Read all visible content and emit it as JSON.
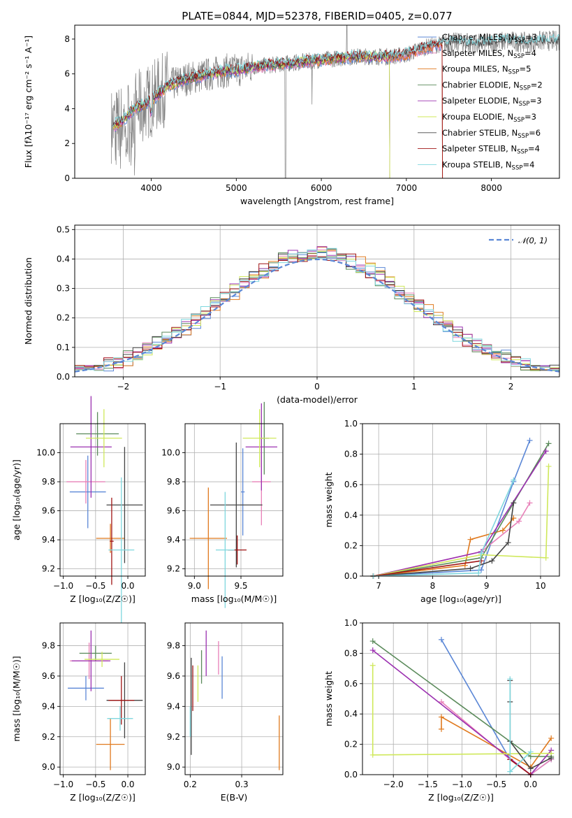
{
  "colors": {
    "chabrier_miles": "#5b87d6",
    "salpeter_miles": "#e880b8",
    "kroupa_miles": "#e07a1f",
    "chabrier_elodie": "#5a8a5a",
    "salpeter_elodie": "#9b30b0",
    "kroupa_elodie": "#cfe85a",
    "chabrier_stelib": "#444444",
    "salpeter_stelib": "#a01515",
    "kroupa_stelib": "#7fd7de",
    "data": "#808080",
    "normal": "#5b87d6"
  },
  "chart_data": [
    {
      "id": "spectrum",
      "type": "line",
      "title": "PLATE=0844, MJD=52378, FIBERID=0405, z=0.077",
      "xlabel": "wavelength [Angstrom, rest frame]",
      "ylabel": "Flux [fλ10⁻¹⁷ erg cm⁻² s⁻¹ A⁻¹]",
      "xlim": [
        3100,
        8800
      ],
      "ylim": [
        0,
        8.8
      ],
      "xticks": [
        4000,
        5000,
        6000,
        7000,
        8000
      ],
      "yticks": [
        0,
        2,
        4,
        6,
        8
      ],
      "grid": false,
      "legend_position": "right",
      "legend": [
        {
          "text": "Chabrier MILES, N",
          "sub": "SSP",
          "tail": "=3",
          "color": "chabrier_miles"
        },
        {
          "text": "Salpeter MILES, N",
          "sub": "SSP",
          "tail": "=4",
          "color": "salpeter_miles"
        },
        {
          "text": "Kroupa MILES, N",
          "sub": "SSP",
          "tail": "=5",
          "color": "kroupa_miles"
        },
        {
          "text": "Chabrier ELODIE, N",
          "sub": "SSP",
          "tail": "=2",
          "color": "chabrier_elodie"
        },
        {
          "text": "Salpeter ELODIE, N",
          "sub": "SSP",
          "tail": "=3",
          "color": "salpeter_elodie"
        },
        {
          "text": "Kroupa ELODIE, N",
          "sub": "SSP",
          "tail": "=3",
          "color": "kroupa_elodie"
        },
        {
          "text": "Chabrier STELIB, N",
          "sub": "SSP",
          "tail": "=6",
          "color": "chabrier_stelib"
        },
        {
          "text": "Salpeter STELIB, N",
          "sub": "SSP",
          "tail": "=4",
          "color": "salpeter_stelib"
        },
        {
          "text": "Kroupa STELIB, N",
          "sub": "SSP",
          "tail": "=4",
          "color": "kroupa_stelib"
        }
      ],
      "continuum": [
        [
          3500,
          3.0
        ],
        [
          3600,
          3.1
        ],
        [
          3700,
          3.5
        ],
        [
          3800,
          4.0
        ],
        [
          3900,
          4.2
        ],
        [
          4000,
          4.5
        ],
        [
          4100,
          4.9
        ],
        [
          4200,
          5.3
        ],
        [
          4300,
          5.5
        ],
        [
          4400,
          5.7
        ],
        [
          4500,
          5.8
        ],
        [
          4600,
          5.9
        ],
        [
          4700,
          6.0
        ],
        [
          4800,
          6.1
        ],
        [
          4900,
          6.2
        ],
        [
          5000,
          6.2
        ],
        [
          5200,
          6.4
        ],
        [
          5400,
          6.5
        ],
        [
          5600,
          6.6
        ],
        [
          5800,
          6.7
        ],
        [
          6000,
          6.8
        ],
        [
          6200,
          6.9
        ],
        [
          6400,
          7.0
        ],
        [
          6600,
          7.0
        ],
        [
          6800,
          7.0
        ],
        [
          7000,
          7.1
        ],
        [
          7200,
          7.5
        ],
        [
          7400,
          7.7
        ],
        [
          7600,
          7.8
        ],
        [
          7800,
          7.7
        ],
        [
          8000,
          7.8
        ],
        [
          8200,
          7.9
        ],
        [
          8400,
          7.8
        ],
        [
          8600,
          7.9
        ],
        [
          8800,
          7.9
        ]
      ]
    },
    {
      "id": "residuals",
      "type": "step",
      "xlabel": "(data-model)/error",
      "ylabel": "Normed distribution",
      "xlim": [
        -2.5,
        2.5
      ],
      "ylim": [
        0,
        0.515
      ],
      "xticks": [
        -2,
        -1,
        0,
        1,
        2
      ],
      "yticks": [
        0.0,
        0.1,
        0.2,
        0.3,
        0.4,
        0.5
      ],
      "grid": true,
      "legend_position": "top-right",
      "legend": [
        {
          "text": "𝒩(0, 1)",
          "color": "normal",
          "style": "dashed"
        }
      ],
      "bin_width": 0.1
    },
    {
      "id": "z_age",
      "type": "errorbar",
      "xlabel": "Z [log₁₀(Z/Z☉)]",
      "ylabel": "age  [log₁₀(age/yr)]",
      "xlim": [
        -1.05,
        0.27
      ],
      "ylim": [
        9.15,
        10.2
      ],
      "xticks": [
        -1.0,
        -0.5,
        0.0
      ],
      "yticks": [
        9.2,
        9.4,
        9.6,
        9.8,
        10.0
      ],
      "grid": true,
      "points": [
        {
          "series": "chabrier_miles",
          "x": -0.62,
          "xerr": 0.28,
          "y": 9.73,
          "yerr": 0.25
        },
        {
          "series": "salpeter_miles",
          "x": -0.65,
          "xerr": 0.3,
          "y": 9.8,
          "yerr": 0.15
        },
        {
          "series": "kroupa_miles",
          "x": -0.27,
          "xerr": 0.22,
          "y": 9.41,
          "yerr": 0.1
        },
        {
          "series": "chabrier_elodie",
          "x": -0.47,
          "xerr": 0.33,
          "y": 10.13,
          "yerr": 0.15
        },
        {
          "series": "salpeter_elodie",
          "x": -0.57,
          "xerr": 0.32,
          "y": 10.04,
          "yerr": 0.35
        },
        {
          "series": "kroupa_elodie",
          "x": -0.37,
          "xerr": 0.28,
          "y": 10.1,
          "yerr": 0.2
        },
        {
          "series": "chabrier_stelib",
          "x": -0.05,
          "xerr": 0.28,
          "y": 9.64,
          "yerr": 0.4
        },
        {
          "series": "salpeter_stelib",
          "x": -0.25,
          "xerr": 0.03,
          "y": 9.39,
          "yerr": 0.3
        },
        {
          "series": "kroupa_stelib",
          "x": -0.1,
          "xerr": 0.2,
          "y": 9.33,
          "yerr": 0.5
        }
      ]
    },
    {
      "id": "mass_age",
      "type": "errorbar",
      "xlabel": "mass [log₁₀(M/M☉)]",
      "ylabel": "",
      "xlim": [
        8.9,
        9.95
      ],
      "ylim": [
        9.15,
        10.2
      ],
      "xticks": [
        9.0,
        9.5
      ],
      "yticks": [
        9.2,
        9.4,
        9.6,
        9.8,
        10.0
      ],
      "grid": true,
      "points": [
        {
          "series": "chabrier_miles",
          "x": 9.52,
          "xerr": 0.02,
          "y": 9.73,
          "yerr": 0.3
        },
        {
          "series": "salpeter_miles",
          "x": 9.72,
          "xerr": 0.1,
          "y": 9.8,
          "yerr": 0.3
        },
        {
          "series": "kroupa_miles",
          "x": 9.15,
          "xerr": 0.2,
          "y": 9.41,
          "yerr": 0.35
        },
        {
          "series": "chabrier_elodie",
          "x": 9.75,
          "xerr": 0.05,
          "y": 10.1,
          "yerr": 0.25
        },
        {
          "series": "salpeter_elodie",
          "x": 9.72,
          "xerr": 0.17,
          "y": 10.04,
          "yerr": 0.3
        },
        {
          "series": "kroupa_elodie",
          "x": 9.7,
          "xerr": 0.18,
          "y": 10.1,
          "yerr": 0.2
        },
        {
          "series": "chabrier_stelib",
          "x": 9.45,
          "xerr": 0.28,
          "y": 9.64,
          "yerr": 0.43
        },
        {
          "series": "salpeter_stelib",
          "x": 9.46,
          "xerr": 0.1,
          "y": 9.33,
          "yerr": 0.1
        },
        {
          "series": "kroupa_stelib",
          "x": 9.33,
          "xerr": 0.1,
          "y": 9.33,
          "yerr": 0.4
        }
      ]
    },
    {
      "id": "age_weight",
      "type": "line",
      "xlabel": "age  [log₁₀(age/yr)]",
      "ylabel": "mass weight",
      "xlim": [
        6.7,
        10.35
      ],
      "ylim": [
        0,
        1.0
      ],
      "xticks": [
        7,
        8,
        9,
        10
      ],
      "yticks": [
        0.0,
        0.2,
        0.4,
        0.6,
        0.8,
        1.0
      ],
      "grid": true,
      "series": [
        {
          "name": "chabrier_miles",
          "points": [
            [
              6.9,
              0.0
            ],
            [
              8.9,
              0.04
            ],
            [
              9.5,
              0.62
            ],
            [
              9.8,
              0.89
            ]
          ]
        },
        {
          "name": "salpeter_miles",
          "points": [
            [
              6.9,
              0.0
            ],
            [
              8.9,
              0.16
            ],
            [
              9.6,
              0.36
            ],
            [
              9.8,
              0.48
            ]
          ]
        },
        {
          "name": "kroupa_miles",
          "points": [
            [
              6.9,
              0.0
            ],
            [
              8.6,
              0.07
            ],
            [
              8.7,
              0.24
            ],
            [
              9.3,
              0.3
            ],
            [
              9.5,
              0.38
            ]
          ]
        },
        {
          "name": "chabrier_elodie",
          "points": [
            [
              6.9,
              0.0
            ],
            [
              8.9,
              0.12
            ],
            [
              10.15,
              0.87
            ]
          ]
        },
        {
          "name": "salpeter_elodie",
          "points": [
            [
              6.9,
              0.0
            ],
            [
              8.9,
              0.16
            ],
            [
              10.1,
              0.82
            ]
          ]
        },
        {
          "name": "kroupa_elodie",
          "points": [
            [
              6.9,
              0.0
            ],
            [
              8.9,
              0.14
            ],
            [
              10.1,
              0.12
            ],
            [
              10.15,
              0.72
            ]
          ]
        },
        {
          "name": "chabrier_stelib",
          "points": [
            [
              6.9,
              0.0
            ],
            [
              8.7,
              0.05
            ],
            [
              9.1,
              0.1
            ],
            [
              9.4,
              0.22
            ],
            [
              9.5,
              0.48
            ]
          ]
        },
        {
          "name": "salpeter_stelib",
          "points": [
            [
              6.9,
              0.0
            ],
            [
              8.9,
              0.1
            ]
          ]
        },
        {
          "name": "kroupa_stelib",
          "points": [
            [
              6.9,
              0.0
            ],
            [
              8.85,
              0.02
            ],
            [
              8.9,
              0.15
            ],
            [
              9.5,
              0.63
            ]
          ]
        }
      ]
    },
    {
      "id": "z_mass",
      "type": "errorbar",
      "xlabel": "Z [log₁₀(Z/Z☉)]",
      "ylabel": "mass [log₁₀(M/M☉)]",
      "xlim": [
        -1.05,
        0.27
      ],
      "ylim": [
        8.95,
        9.95
      ],
      "xticks": [
        -1.0,
        -0.5,
        0.0
      ],
      "yticks": [
        9.0,
        9.2,
        9.4,
        9.6,
        9.8
      ],
      "grid": true,
      "points": [
        {
          "series": "chabrier_miles",
          "x": -0.65,
          "xerr": 0.28,
          "y": 9.52,
          "yerr": 0.08
        },
        {
          "series": "salpeter_miles",
          "x": -0.6,
          "xerr": 0.3,
          "y": 9.7,
          "yerr": 0.12
        },
        {
          "series": "kroupa_miles",
          "x": -0.27,
          "xerr": 0.22,
          "y": 9.15,
          "yerr": 0.17
        },
        {
          "series": "chabrier_elodie",
          "x": -0.5,
          "xerr": 0.25,
          "y": 9.75,
          "yerr": 0.05
        },
        {
          "series": "salpeter_elodie",
          "x": -0.57,
          "xerr": 0.3,
          "y": 9.7,
          "yerr": 0.2
        },
        {
          "series": "kroupa_elodie",
          "x": -0.4,
          "xerr": 0.27,
          "y": 9.71,
          "yerr": 0.05
        },
        {
          "series": "chabrier_stelib",
          "x": -0.05,
          "xerr": 0.28,
          "y": 9.44,
          "yerr": 0.25
        },
        {
          "series": "salpeter_stelib",
          "x": -0.1,
          "xerr": 0.2,
          "y": 9.44,
          "yerr": 0.16
        },
        {
          "series": "kroupa_stelib",
          "x": -0.12,
          "xerr": 0.2,
          "y": 9.32,
          "yerr": 0.08
        }
      ]
    },
    {
      "id": "ebv_mass",
      "type": "errorbar",
      "xlabel": "E(B-V)",
      "ylabel": "",
      "xlim": [
        0.19,
        0.38
      ],
      "ylim": [
        8.95,
        9.95
      ],
      "xticks": [
        0.2,
        0.3
      ],
      "yticks": [
        9.0,
        9.2,
        9.4,
        9.6,
        9.8
      ],
      "grid": true,
      "points": [
        {
          "series": "chabrier_miles",
          "x": 0.262,
          "xerr": 0,
          "y": 9.59,
          "yerr": 0.14
        },
        {
          "series": "salpeter_miles",
          "x": 0.255,
          "xerr": 0,
          "y": 9.72,
          "yerr": 0.11
        },
        {
          "series": "kroupa_miles",
          "x": 0.373,
          "xerr": 0,
          "y": 9.16,
          "yerr": 0.18
        },
        {
          "series": "chabrier_elodie",
          "x": 0.222,
          "xerr": 0,
          "y": 9.66,
          "yerr": 0.11
        },
        {
          "series": "salpeter_elodie",
          "x": 0.231,
          "xerr": 0,
          "y": 9.75,
          "yerr": 0.15
        },
        {
          "series": "kroupa_elodie",
          "x": 0.215,
          "xerr": 0,
          "y": 9.55,
          "yerr": 0.12
        },
        {
          "series": "chabrier_stelib",
          "x": 0.202,
          "xerr": 0,
          "y": 9.4,
          "yerr": 0.32
        },
        {
          "series": "salpeter_stelib",
          "x": 0.205,
          "xerr": 0,
          "y": 9.52,
          "yerr": 0.15
        },
        {
          "series": "kroupa_stelib",
          "x": 0.2,
          "xerr": 0,
          "y": 9.3,
          "yerr": 0.1
        }
      ]
    },
    {
      "id": "z_weight",
      "type": "line",
      "xlabel": "Z [log₁₀(Z/Z☉)]",
      "ylabel": "mass weight",
      "xlim": [
        -2.45,
        0.42
      ],
      "ylim": [
        0,
        1.0
      ],
      "xticks": [
        -2.0,
        -1.5,
        -1.0,
        -0.5,
        0.0
      ],
      "yticks": [
        0.0,
        0.2,
        0.4,
        0.6,
        0.8,
        1.0
      ],
      "grid": true,
      "series": [
        {
          "name": "chabrier_miles",
          "points": [
            [
              -1.3,
              0.89
            ],
            [
              -0.3,
              0.1
            ],
            [
              0.0,
              0.0
            ],
            [
              0.3,
              0.1
            ]
          ]
        },
        {
          "name": "salpeter_miles",
          "points": [
            [
              -1.3,
              0.48
            ],
            [
              -0.3,
              0.1
            ],
            [
              0.0,
              0.0
            ],
            [
              0.3,
              0.1
            ]
          ]
        },
        {
          "name": "kroupa_miles",
          "points": [
            [
              -1.3,
              0.3
            ],
            [
              -1.3,
              0.38
            ],
            [
              0.0,
              0.05
            ],
            [
              0.3,
              0.24
            ]
          ]
        },
        {
          "name": "chabrier_elodie",
          "points": [
            [
              -2.3,
              0.88
            ],
            [
              0.0,
              0.12
            ],
            [
              0.3,
              0.12
            ]
          ]
        },
        {
          "name": "salpeter_elodie",
          "points": [
            [
              -2.3,
              0.82
            ],
            [
              0.0,
              0.0
            ],
            [
              0.3,
              0.16
            ]
          ]
        },
        {
          "name": "kroupa_elodie",
          "points": [
            [
              -2.3,
              0.72
            ],
            [
              -2.3,
              0.13
            ],
            [
              0.3,
              0.14
            ]
          ]
        },
        {
          "name": "chabrier_stelib",
          "points": [
            [
              -0.3,
              0.62
            ],
            [
              -0.3,
              0.48
            ],
            [
              -0.3,
              0.22
            ],
            [
              0.0,
              0.04
            ],
            [
              0.3,
              0.11
            ]
          ]
        },
        {
          "name": "salpeter_stelib",
          "points": [
            [
              -0.3,
              0.1
            ],
            [
              0.0,
              0.0
            ]
          ]
        },
        {
          "name": "kroupa_stelib",
          "points": [
            [
              -0.3,
              0.63
            ],
            [
              -0.3,
              0.02
            ],
            [
              0.0,
              0.15
            ]
          ]
        }
      ]
    }
  ]
}
